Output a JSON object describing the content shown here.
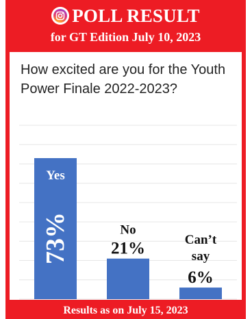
{
  "header": {
    "title": "POLL RESULT",
    "subtitle": "for GT Edition July 10, 2023"
  },
  "question": "How excited are you for the Youth Power Finale 2022-2023?",
  "footer": "Results as on July 15, 2023",
  "colors": {
    "background": "#ed1c24",
    "bar": "#4472c4",
    "panel": "#ffffff"
  },
  "chart_data": {
    "type": "bar",
    "categories": [
      "Yes",
      "No",
      "Can’t say"
    ],
    "values": [
      73,
      21,
      6
    ],
    "value_labels": [
      "73%",
      "21%",
      "6%"
    ],
    "title": "",
    "xlabel": "",
    "ylabel": "",
    "ylim": [
      0,
      90
    ],
    "grid": true,
    "legend": "none"
  }
}
